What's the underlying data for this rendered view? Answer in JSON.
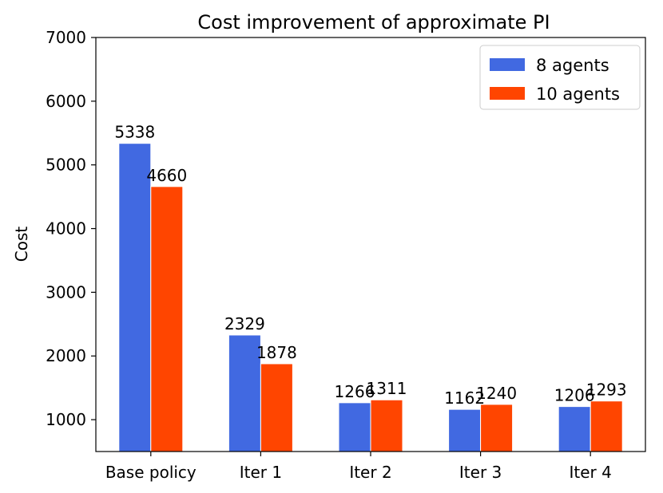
{
  "chart_data": {
    "type": "bar",
    "title": "Cost improvement of approximate PI",
    "xlabel": "",
    "ylabel": "Cost",
    "categories": [
      "Base policy",
      "Iter 1",
      "Iter 2",
      "Iter 3",
      "Iter 4"
    ],
    "series": [
      {
        "name": "8 agents",
        "color": "#4169e1",
        "values": [
          5338,
          2329,
          1266,
          1162,
          1206
        ]
      },
      {
        "name": "10 agents",
        "color": "#ff4500",
        "values": [
          4660,
          1878,
          1311,
          1240,
          1293
        ]
      }
    ],
    "ylim": [
      500,
      7000
    ],
    "yticks": [
      1000,
      2000,
      3000,
      4000,
      5000,
      6000,
      7000
    ],
    "grid": false,
    "legend_position": "top-right"
  }
}
